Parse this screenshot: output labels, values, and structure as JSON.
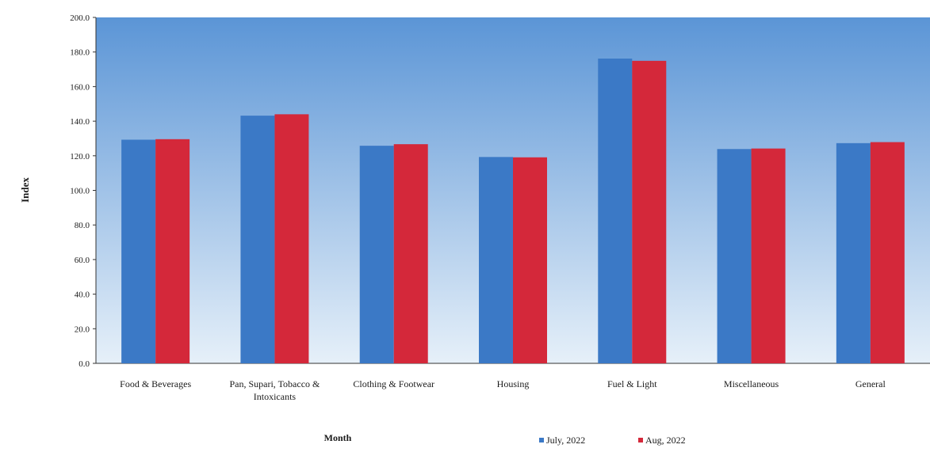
{
  "chart_data": {
    "type": "bar",
    "xlabel": "Month",
    "ylabel": "Index",
    "ylim": [
      0,
      200
    ],
    "yticks": [
      "0.0",
      "20.0",
      "40.0",
      "60.0",
      "80.0",
      "100.0",
      "120.0",
      "140.0",
      "160.0",
      "180.0",
      "200.0"
    ],
    "categories": [
      [
        "Food & Beverages"
      ],
      [
        "Pan, Supari, Tobacco &",
        "Intoxicants"
      ],
      [
        "Clothing & Footwear"
      ],
      [
        "Housing"
      ],
      [
        "Fuel & Light"
      ],
      [
        "Miscellaneous"
      ],
      [
        "General"
      ]
    ],
    "series": [
      {
        "name": "July, 2022",
        "color": "#3b79c6",
        "values": [
          129.3,
          143.2,
          125.8,
          119.3,
          176.2,
          123.9,
          127.3
        ]
      },
      {
        "name": "Aug, 2022",
        "color": "#d4283a",
        "values": [
          129.6,
          144.0,
          126.7,
          119.1,
          174.9,
          124.2,
          127.9
        ]
      }
    ],
    "grid": false,
    "legend_position": "bottom",
    "colors": {
      "plot_bg_top": "#5b95d6",
      "plot_bg_bottom": "#e6f0f9",
      "axis": "#333333"
    }
  }
}
